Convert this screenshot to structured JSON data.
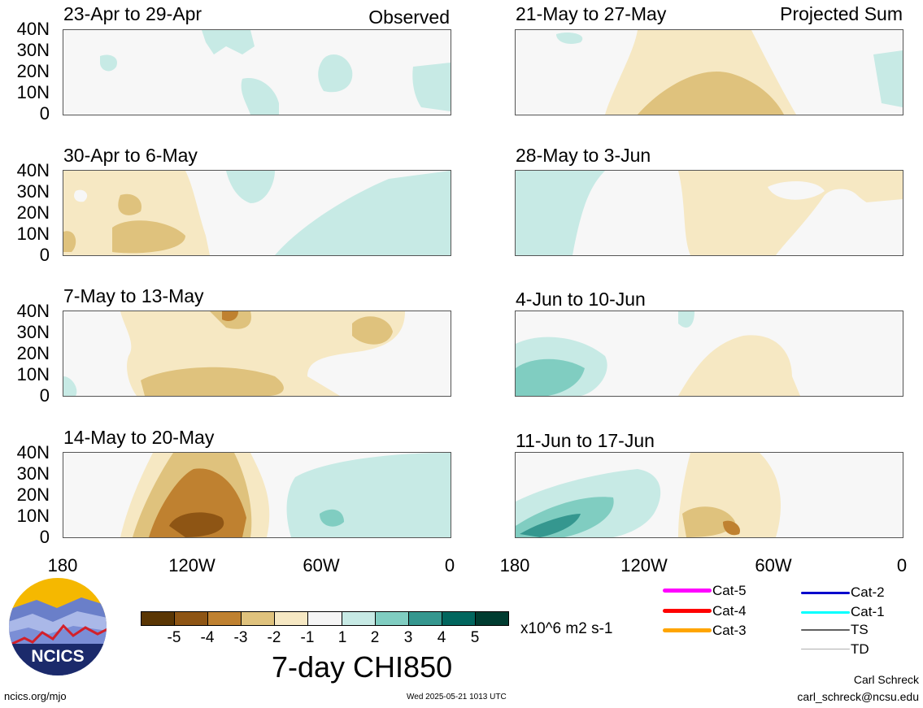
{
  "panels": [
    {
      "title": "23-Apr to 29-Apr",
      "tag": "Observed"
    },
    {
      "title": "30-Apr to 6-May",
      "tag": ""
    },
    {
      "title": "7-May to 13-May",
      "tag": ""
    },
    {
      "title": "14-May to 20-May",
      "tag": ""
    },
    {
      "title": "21-May to 27-May",
      "tag": "Projected Sum"
    },
    {
      "title": "28-May to 3-Jun",
      "tag": ""
    },
    {
      "title": "4-Jun to 10-Jun",
      "tag": ""
    },
    {
      "title": "11-Jun to 17-Jun",
      "tag": ""
    }
  ],
  "y_ticks": [
    "40N",
    "30N",
    "20N",
    "10N",
    "0"
  ],
  "x_ticks": [
    "180",
    "120W",
    "60W",
    "0"
  ],
  "colorbar": {
    "colors": [
      "#5a3604",
      "#8e5514",
      "#bf8130",
      "#dfc27d",
      "#f6e8c3",
      "#f5f5f5",
      "#c7eae5",
      "#80cdc1",
      "#35978f",
      "#01665e",
      "#003c30"
    ],
    "labels": [
      "-5",
      "-4",
      "-3",
      "-2",
      "-1",
      "1",
      "2",
      "3",
      "4",
      "5"
    ],
    "units": "x10^6 m2 s-1",
    "title": "7-day CHI850"
  },
  "legend": {
    "left": [
      {
        "label": "Cat-5",
        "color": "#ff00ff"
      },
      {
        "label": "Cat-4",
        "color": "#ff0000"
      },
      {
        "label": "Cat-3",
        "color": "#ffa500"
      }
    ],
    "right": [
      {
        "label": "Cat-2",
        "color": "#0000cc"
      },
      {
        "label": "Cat-1",
        "color": "#00ffff"
      },
      {
        "label": "TS",
        "color": "#606060"
      },
      {
        "label": "TD",
        "color": "#b0b0b0"
      }
    ]
  },
  "logo": {
    "text": "NCICS"
  },
  "footer": {
    "left": "ncics.org/mjo",
    "timestamp": "Wed 2025-05-21 1013 UTC",
    "author": "Carl Schreck",
    "email": "carl_schreck@ncsu.edu"
  }
}
